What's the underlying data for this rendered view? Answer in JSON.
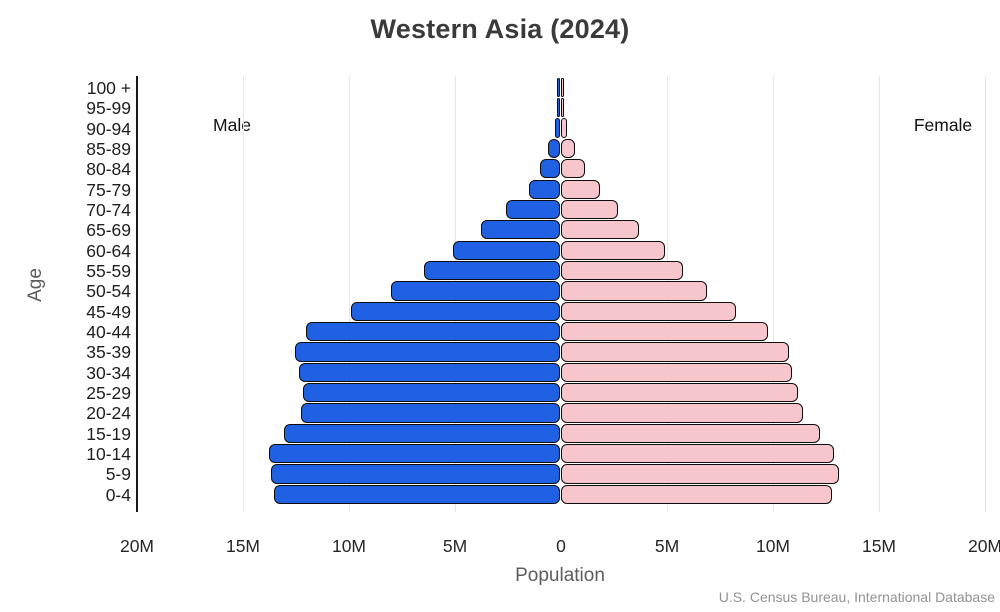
{
  "chart_data": {
    "type": "bar",
    "subtype": "population-pyramid",
    "title": "Western Asia (2024)",
    "xlabel": "Population",
    "ylabel": "Age",
    "source": "U.S. Census Bureau, International Database",
    "legend": {
      "left": "Male",
      "right": "Female"
    },
    "units": "millions of people",
    "xlim_millions": [
      -20,
      20
    ],
    "grid": "vertical gridlines every 5M, black left spine at 20M",
    "x_ticks": [
      {
        "label": "20M",
        "value": -20
      },
      {
        "label": "15M",
        "value": -15
      },
      {
        "label": "10M",
        "value": -10
      },
      {
        "label": "5M",
        "value": -5
      },
      {
        "label": "0",
        "value": 0
      },
      {
        "label": "5M",
        "value": 5
      },
      {
        "label": "10M",
        "value": 10
      },
      {
        "label": "15M",
        "value": 15
      },
      {
        "label": "20M",
        "value": 20
      }
    ],
    "categories_top_to_bottom": [
      "100 +",
      "95-99",
      "90-94",
      "85-89",
      "80-84",
      "75-79",
      "70-74",
      "65-69",
      "60-64",
      "55-59",
      "50-54",
      "45-49",
      "40-44",
      "35-39",
      "30-34",
      "25-29",
      "20-24",
      "15-19",
      "10-14",
      "5-9",
      "0-4"
    ],
    "series": [
      {
        "name": "Male",
        "color": "#2061e4",
        "values_millions": [
          0.02,
          0.05,
          0.15,
          0.45,
          0.85,
          1.35,
          2.45,
          3.6,
          4.95,
          6.3,
          7.85,
          9.75,
          11.9,
          12.4,
          12.2,
          12.0,
          12.1,
          12.9,
          13.6,
          13.55,
          13.4
        ]
      },
      {
        "name": "Female",
        "color": "#f7c6cc",
        "values_millions": [
          0.03,
          0.06,
          0.2,
          0.55,
          1.05,
          1.75,
          2.6,
          3.6,
          4.8,
          5.65,
          6.8,
          8.15,
          9.65,
          10.65,
          10.8,
          11.1,
          11.3,
          12.1,
          12.8,
          13.0,
          12.7
        ]
      }
    ],
    "colors": {
      "male": "#2061e4",
      "female": "#f7c6cc",
      "bar_outline": "#0d0d0d",
      "gridline": "#e7e7e7",
      "title_text": "#3a3a3a",
      "axis_text": "#262626",
      "axis_title_text": "#5d5d5d",
      "source_text": "#939393"
    }
  }
}
